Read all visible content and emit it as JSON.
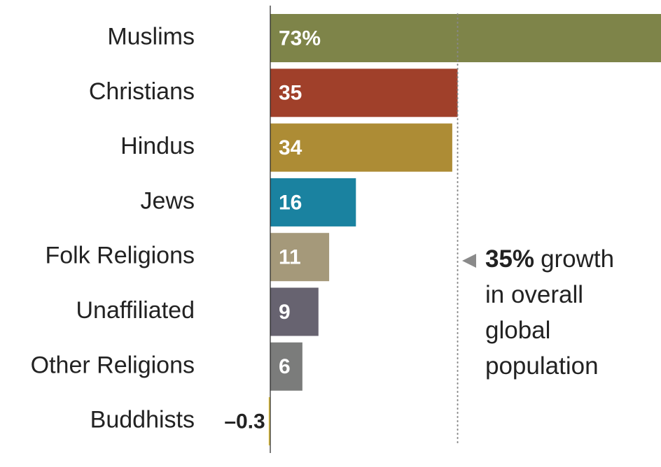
{
  "chart_data": {
    "type": "hbar",
    "categories": [
      "Muslims",
      "Christians",
      "Hindus",
      "Jews",
      "Folk Religions",
      "Unaffiliated",
      "Other Religions",
      "Buddhists"
    ],
    "values": [
      73,
      35,
      34,
      16,
      11,
      9,
      6,
      -0.3
    ],
    "value_labels": [
      "73%",
      "35",
      "34",
      "16",
      "11",
      "9",
      "6",
      "–0.3"
    ],
    "colors": [
      "#7e8449",
      "#a0402a",
      "#ad8c35",
      "#1a82a0",
      "#a5997a",
      "#676370",
      "#7b7c7b",
      "#e5c84a"
    ],
    "xlim": [
      0,
      73
    ],
    "annotation": {
      "value": 35,
      "emphasis": "35%",
      "lines": [
        "growth",
        "in overall",
        "global",
        "population"
      ]
    }
  }
}
